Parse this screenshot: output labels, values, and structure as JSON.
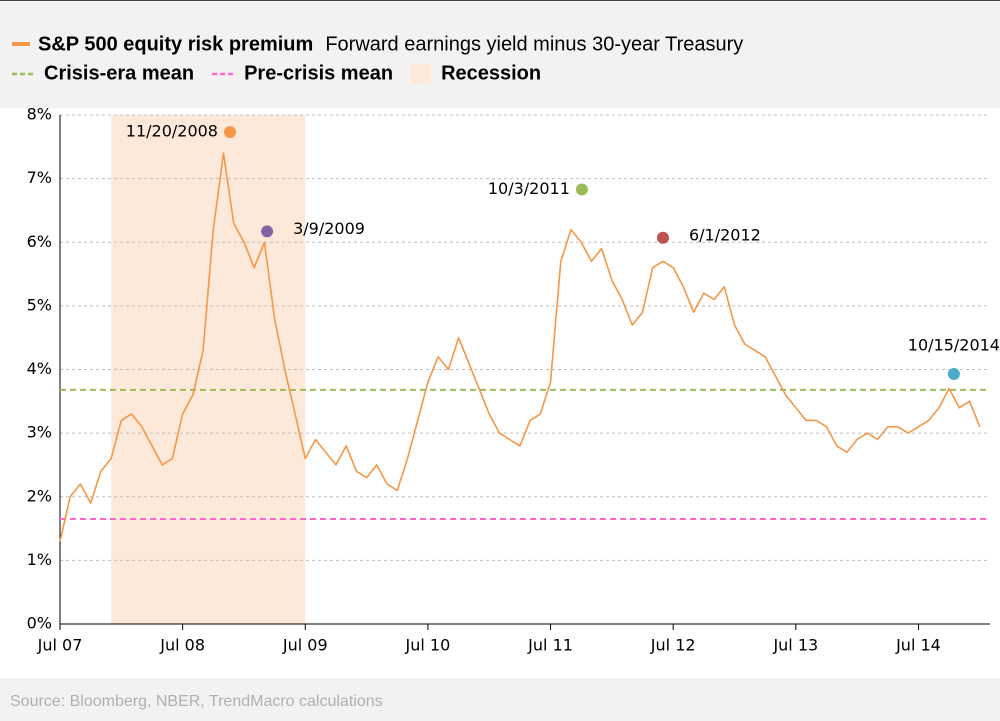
{
  "chart_data": {
    "type": "line",
    "legend_note": "Forward earnings yield minus 30-year Treasury",
    "source": "Source: Bloomberg, NBER, TrendMacro calculations",
    "series": [
      {
        "name": "S&P 500 equity risk premium",
        "color": "#f79646",
        "x": [
          "2007-07",
          "2007-08",
          "2007-09",
          "2007-10",
          "2007-11",
          "2007-12",
          "2008-01",
          "2008-02",
          "2008-03",
          "2008-04",
          "2008-05",
          "2008-06",
          "2008-07",
          "2008-08",
          "2008-09",
          "2008-10",
          "2008-11",
          "2008-12",
          "2009-01",
          "2009-02",
          "2009-03",
          "2009-04",
          "2009-05",
          "2009-06",
          "2009-07",
          "2009-08",
          "2009-09",
          "2009-10",
          "2009-11",
          "2009-12",
          "2010-01",
          "2010-02",
          "2010-03",
          "2010-04",
          "2010-05",
          "2010-06",
          "2010-07",
          "2010-08",
          "2010-09",
          "2010-10",
          "2010-11",
          "2010-12",
          "2011-01",
          "2011-02",
          "2011-03",
          "2011-04",
          "2011-05",
          "2011-06",
          "2011-07",
          "2011-08",
          "2011-09",
          "2011-10",
          "2011-11",
          "2011-12",
          "2012-01",
          "2012-02",
          "2012-03",
          "2012-04",
          "2012-05",
          "2012-06",
          "2012-07",
          "2012-08",
          "2012-09",
          "2012-10",
          "2012-11",
          "2012-12",
          "2013-01",
          "2013-02",
          "2013-03",
          "2013-04",
          "2013-05",
          "2013-06",
          "2013-07",
          "2013-08",
          "2013-09",
          "2013-10",
          "2013-11",
          "2013-12",
          "2014-01",
          "2014-02",
          "2014-03",
          "2014-04",
          "2014-05",
          "2014-06",
          "2014-07",
          "2014-08",
          "2014-09",
          "2014-10",
          "2014-11",
          "2014-12",
          "2015-01"
        ],
        "values": [
          1.3,
          2.0,
          2.2,
          1.9,
          2.4,
          2.6,
          3.2,
          3.3,
          3.1,
          2.8,
          2.5,
          2.6,
          3.3,
          3.6,
          4.3,
          6.2,
          7.4,
          6.3,
          6.0,
          5.6,
          6.0,
          4.8,
          4.0,
          3.3,
          2.6,
          2.9,
          2.7,
          2.5,
          2.8,
          2.4,
          2.3,
          2.5,
          2.2,
          2.1,
          2.6,
          3.2,
          3.8,
          4.2,
          4.0,
          4.5,
          4.1,
          3.7,
          3.3,
          3.0,
          2.9,
          2.8,
          3.2,
          3.3,
          3.8,
          5.7,
          6.2,
          6.0,
          5.7,
          5.9,
          5.4,
          5.1,
          4.7,
          4.9,
          5.6,
          5.7,
          5.6,
          5.3,
          4.9,
          5.2,
          5.1,
          5.3,
          4.7,
          4.4,
          4.3,
          4.2,
          3.9,
          3.6,
          3.4,
          3.2,
          3.2,
          3.1,
          2.8,
          2.7,
          2.9,
          3.0,
          2.9,
          3.1,
          3.1,
          3.0,
          3.1,
          3.2,
          3.4,
          3.7,
          3.4,
          3.5,
          3.1
        ]
      }
    ],
    "reference_lines": [
      {
        "name": "Crisis-era mean",
        "value": 3.68,
        "color": "#9bbb59"
      },
      {
        "name": "Pre-crisis mean",
        "value": 1.65,
        "color": "#ff66cc"
      }
    ],
    "shaded": [
      {
        "name": "Recession",
        "start": "2007-12",
        "end": "2009-07",
        "color": "#fde9d9"
      }
    ],
    "annotations": [
      {
        "label": "11/20/2008",
        "x": "2008-11-20",
        "y": 7.73,
        "color": "#f79646"
      },
      {
        "label": "3/9/2009",
        "x": "2009-03-09",
        "y": 6.17,
        "color": "#8064a2"
      },
      {
        "label": "10/3/2011",
        "x": "2011-10-03",
        "y": 6.83,
        "color": "#9bbb59"
      },
      {
        "label": "6/1/2012",
        "x": "2012-06-01",
        "y": 6.07,
        "color": "#c0504d"
      },
      {
        "label": "10/15/2014",
        "x": "2014-10-15",
        "y": 3.93,
        "color": "#4bacc6"
      }
    ],
    "xlim": [
      "2007-07",
      "2015-02"
    ],
    "xticks": [
      {
        "value": "2007-07",
        "label": "Jul 07"
      },
      {
        "value": "2008-07",
        "label": "Jul 08"
      },
      {
        "value": "2009-07",
        "label": "Jul 09"
      },
      {
        "value": "2010-07",
        "label": "Jul 10"
      },
      {
        "value": "2011-07",
        "label": "Jul 11"
      },
      {
        "value": "2012-07",
        "label": "Jul 12"
      },
      {
        "value": "2013-07",
        "label": "Jul 13"
      },
      {
        "value": "2014-07",
        "label": "Jul 14"
      }
    ],
    "ylim": [
      0,
      8
    ],
    "yticks": [
      {
        "value": 0,
        "label": "0%"
      },
      {
        "value": 1,
        "label": "1%"
      },
      {
        "value": 2,
        "label": "2%"
      },
      {
        "value": 3,
        "label": "3%"
      },
      {
        "value": 4,
        "label": "4%"
      },
      {
        "value": 5,
        "label": "5%"
      },
      {
        "value": 6,
        "label": "6%"
      },
      {
        "value": 7,
        "label": "7%"
      },
      {
        "value": 8,
        "label": "8%"
      }
    ],
    "grid": true
  }
}
